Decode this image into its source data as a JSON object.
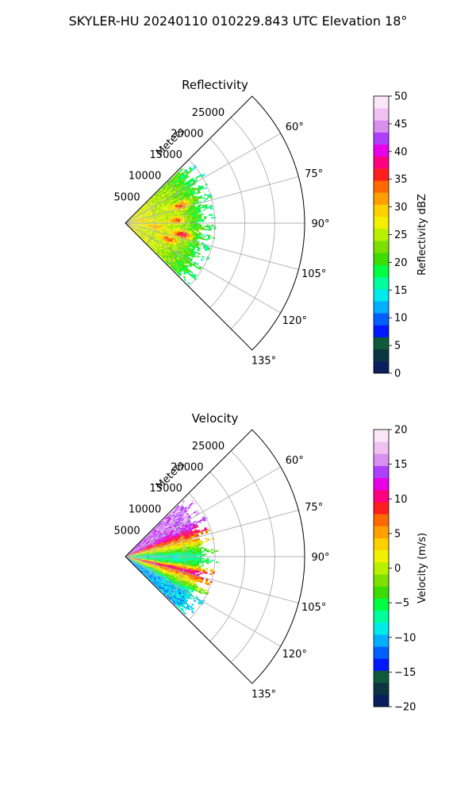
{
  "figure": {
    "title": "SKYLER-HU  20240110  010229.843 UTC Elevation 18°"
  },
  "chart_data": [
    {
      "type": "heatmap",
      "projection": "polar-sector",
      "title": "Reflectivity",
      "radial_label": "Meters",
      "radial_ticks": [
        5000,
        10000,
        15000,
        20000,
        25000
      ],
      "radial_tick_labels": [
        "5000",
        "10000",
        "15000",
        "20000",
        "25000"
      ],
      "rmax": 30000,
      "data_extent_m": 15500,
      "azimuth_range_deg": [
        45,
        135
      ],
      "azimuth_ticks": [
        60,
        75,
        90,
        105,
        120,
        135
      ],
      "azimuth_tick_labels": [
        "60°",
        "75°",
        "90°",
        "105°",
        "120°",
        "135°"
      ],
      "grid": true,
      "colorbar": {
        "label": "Reflectivity dBZ",
        "min": 0,
        "max": 50,
        "ticks": [
          0,
          5,
          10,
          15,
          20,
          25,
          30,
          35,
          40,
          45,
          50
        ],
        "tick_labels": [
          "0",
          "5",
          "10",
          "15",
          "20",
          "25",
          "30",
          "35",
          "40",
          "45",
          "50"
        ],
        "colors": [
          "#0a1e5e",
          "#0b3540",
          "#0f5a3a",
          "#0018ff",
          "#0060ff",
          "#00b0ff",
          "#00eaea",
          "#00ff9c",
          "#00ff40",
          "#3cdc00",
          "#7ee000",
          "#b8f000",
          "#f0f000",
          "#ffd000",
          "#ffa000",
          "#ff6a00",
          "#ff1e1e",
          "#ff0080",
          "#e800e8",
          "#b040ff",
          "#d890f0",
          "#f0c0f0",
          "#fbe6f8"
        ]
      },
      "field_profile": {
        "radii_m": [
          0,
          2000,
          4000,
          6000,
          8000,
          10000,
          12000,
          14000,
          15500
        ],
        "values_dbz": [
          28,
          27,
          26,
          25,
          24,
          22,
          20,
          18,
          16
        ],
        "noise_dbz": 3,
        "cells": [
          {
            "r_m": 9500,
            "az_deg": 72,
            "dbz": 36
          },
          {
            "r_m": 8500,
            "az_deg": 86,
            "dbz": 34
          },
          {
            "r_m": 9500,
            "az_deg": 101,
            "dbz": 38
          },
          {
            "r_m": 7500,
            "az_deg": 110,
            "dbz": 34
          },
          {
            "r_m": 5000,
            "az_deg": 96,
            "dbz": 31
          },
          {
            "r_m": 3000,
            "az_deg": 82,
            "dbz": 30
          }
        ]
      }
    },
    {
      "type": "heatmap",
      "projection": "polar-sector",
      "title": "Velocity",
      "radial_label": "Meters",
      "radial_ticks": [
        5000,
        10000,
        15000,
        20000,
        25000
      ],
      "radial_tick_labels": [
        "5000",
        "10000",
        "15000",
        "20000",
        "25000"
      ],
      "rmax": 30000,
      "data_extent_m": 15500,
      "azimuth_range_deg": [
        45,
        135
      ],
      "azimuth_ticks": [
        60,
        75,
        90,
        105,
        120,
        135
      ],
      "azimuth_tick_labels": [
        "60°",
        "75°",
        "90°",
        "105°",
        "120°",
        "135°"
      ],
      "grid": true,
      "colorbar": {
        "label": "Velocity (m/s)",
        "min": -20,
        "max": 20,
        "ticks": [
          -20,
          -15,
          -10,
          -5,
          0,
          5,
          10,
          15,
          20
        ],
        "tick_labels": [
          "−20",
          "−15",
          "−10",
          "−5",
          "0",
          "5",
          "10",
          "15",
          "20"
        ],
        "colors": [
          "#0a1e5e",
          "#0b3540",
          "#0f5a3a",
          "#0018ff",
          "#0060ff",
          "#00b0ff",
          "#00eaea",
          "#00ff9c",
          "#00ff40",
          "#3cdc00",
          "#7ee000",
          "#b8f000",
          "#f0f000",
          "#ffd000",
          "#ffa000",
          "#ff6a00",
          "#ff1e1e",
          "#ff0080",
          "#e800e8",
          "#b040ff",
          "#d890f0",
          "#f0c0f0",
          "#fbe6f8"
        ]
      },
      "field_profile": {
        "azimuth_deg": [
          60,
          66,
          72,
          78,
          84,
          90,
          96,
          102,
          108,
          114,
          120
        ],
        "values_ms": [
          14,
          11,
          6,
          1,
          -5,
          -9,
          -6,
          10,
          3,
          -4,
          -11
        ],
        "noise_ms": 2.5
      }
    }
  ]
}
